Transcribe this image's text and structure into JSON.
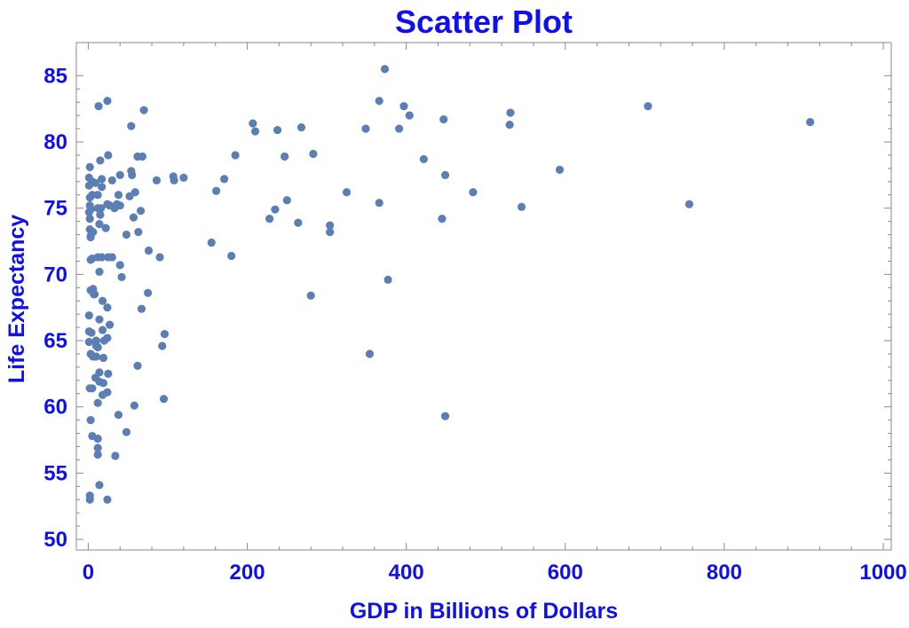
{
  "colors": {
    "text": "#1010ee",
    "point": "#5b7fb4",
    "frame": "#8a8a8a"
  },
  "chart_data": {
    "type": "scatter",
    "title": "Scatter Plot",
    "xlabel": "GDP in Billions of Dollars",
    "ylabel": "Life Expectancy",
    "xlim": [
      -15,
      1010
    ],
    "ylim": [
      49.2,
      87.5
    ],
    "xticks": [
      0,
      200,
      400,
      600,
      800,
      1000
    ],
    "yticks": [
      50,
      55,
      60,
      65,
      70,
      75,
      80,
      85
    ],
    "xtick_labels": [
      "0",
      "200",
      "400",
      "600",
      "800",
      "1000"
    ],
    "ytick_labels": [
      "50",
      "55",
      "60",
      "65",
      "70",
      "75",
      "80",
      "85"
    ],
    "grid": false,
    "points": [
      [
        1,
        77.3
      ],
      [
        1,
        76.7
      ],
      [
        2,
        75.8
      ],
      [
        2,
        75.2
      ],
      [
        1,
        74.7
      ],
      [
        2,
        74.2
      ],
      [
        2,
        73.4
      ],
      [
        3,
        72.9
      ],
      [
        3,
        72.8
      ],
      [
        3,
        71.1
      ],
      [
        2,
        78.1
      ],
      [
        5,
        77.0
      ],
      [
        5,
        76.0
      ],
      [
        3,
        74.9
      ],
      [
        6,
        73.2
      ],
      [
        5,
        71.2
      ],
      [
        6,
        68.9
      ],
      [
        3,
        68.8
      ],
      [
        7,
        68.5
      ],
      [
        1,
        66.9
      ],
      [
        1,
        65.7
      ],
      [
        4,
        65.6
      ],
      [
        1,
        64.9
      ],
      [
        3,
        64.0
      ],
      [
        6,
        63.8
      ],
      [
        10,
        64.6
      ],
      [
        10,
        63.8
      ],
      [
        2,
        61.4
      ],
      [
        5,
        61.4
      ],
      [
        3,
        59.0
      ],
      [
        5,
        57.8
      ],
      [
        2,
        53.3
      ],
      [
        2,
        53.0
      ],
      [
        9,
        76.9
      ],
      [
        12,
        76.0
      ],
      [
        12,
        75.0
      ],
      [
        14,
        73.8
      ],
      [
        12,
        71.3
      ],
      [
        14,
        70.2
      ],
      [
        8,
        68.5
      ],
      [
        14,
        66.6
      ],
      [
        10,
        65.0
      ],
      [
        12,
        64.5
      ],
      [
        14,
        62.6
      ],
      [
        9,
        62.2
      ],
      [
        14,
        61.9
      ],
      [
        12,
        60.3
      ],
      [
        12,
        57.6
      ],
      [
        12,
        56.9
      ],
      [
        12,
        56.4
      ],
      [
        14,
        54.1
      ],
      [
        13,
        82.7
      ],
      [
        15,
        78.6
      ],
      [
        17,
        77.2
      ],
      [
        17,
        76.6
      ],
      [
        16,
        75.0
      ],
      [
        15,
        74.5
      ],
      [
        17,
        71.3
      ],
      [
        18,
        68.0
      ],
      [
        18,
        65.8
      ],
      [
        20,
        65.0
      ],
      [
        19,
        63.7
      ],
      [
        19,
        61.8
      ],
      [
        18,
        60.9
      ],
      [
        24,
        83.1
      ],
      [
        25,
        79.0
      ],
      [
        30,
        77.1
      ],
      [
        24,
        75.3
      ],
      [
        27,
        75.2
      ],
      [
        22,
        73.5
      ],
      [
        25,
        71.3
      ],
      [
        30,
        71.3
      ],
      [
        24,
        67.5
      ],
      [
        24,
        65.2
      ],
      [
        27,
        66.2
      ],
      [
        25,
        62.5
      ],
      [
        24,
        61.1
      ],
      [
        24,
        53.0
      ],
      [
        33,
        75.0
      ],
      [
        36,
        75.3
      ],
      [
        40,
        77.5
      ],
      [
        38,
        76.0
      ],
      [
        40,
        70.7
      ],
      [
        42,
        69.8
      ],
      [
        40,
        75.2
      ],
      [
        48,
        73.0
      ],
      [
        52,
        75.9
      ],
      [
        54,
        77.8
      ],
      [
        55,
        77.5
      ],
      [
        57,
        74.3
      ],
      [
        59,
        76.2
      ],
      [
        38,
        59.4
      ],
      [
        48,
        58.1
      ],
      [
        34,
        56.3
      ],
      [
        58,
        60.1
      ],
      [
        54,
        81.2
      ],
      [
        62,
        78.9
      ],
      [
        68,
        78.9
      ],
      [
        70,
        82.4
      ],
      [
        63,
        73.2
      ],
      [
        66,
        74.8
      ],
      [
        67,
        67.4
      ],
      [
        62,
        63.1
      ],
      [
        76,
        71.8
      ],
      [
        75,
        68.6
      ],
      [
        86,
        77.1
      ],
      [
        90,
        71.3
      ],
      [
        96,
        65.5
      ],
      [
        93,
        64.6
      ],
      [
        95,
        60.6
      ],
      [
        107,
        77.4
      ],
      [
        108,
        77.1
      ],
      [
        120,
        77.3
      ],
      [
        155,
        72.4
      ],
      [
        161,
        76.3
      ],
      [
        171,
        77.2
      ],
      [
        180,
        71.4
      ],
      [
        185,
        79.0
      ],
      [
        207,
        81.4
      ],
      [
        210,
        80.8
      ],
      [
        228,
        74.2
      ],
      [
        235,
        74.9
      ],
      [
        238,
        80.9
      ],
      [
        247,
        78.9
      ],
      [
        250,
        75.6
      ],
      [
        264,
        73.9
      ],
      [
        268,
        81.1
      ],
      [
        280,
        68.4
      ],
      [
        283,
        79.1
      ],
      [
        304,
        73.7
      ],
      [
        304,
        73.2
      ],
      [
        325,
        76.2
      ],
      [
        349,
        81.0
      ],
      [
        354,
        64.0
      ],
      [
        366,
        83.1
      ],
      [
        366,
        75.4
      ],
      [
        373,
        85.5
      ],
      [
        377,
        69.6
      ],
      [
        391,
        81.0
      ],
      [
        397,
        82.7
      ],
      [
        404,
        82.0
      ],
      [
        422,
        78.7
      ],
      [
        445,
        74.2
      ],
      [
        447,
        81.7
      ],
      [
        449,
        77.5
      ],
      [
        449,
        59.3
      ],
      [
        484,
        76.2
      ],
      [
        530,
        81.3
      ],
      [
        531,
        82.2
      ],
      [
        545,
        75.1
      ],
      [
        593,
        77.9
      ],
      [
        704,
        82.7
      ],
      [
        756,
        75.3
      ],
      [
        908,
        81.5
      ]
    ]
  }
}
